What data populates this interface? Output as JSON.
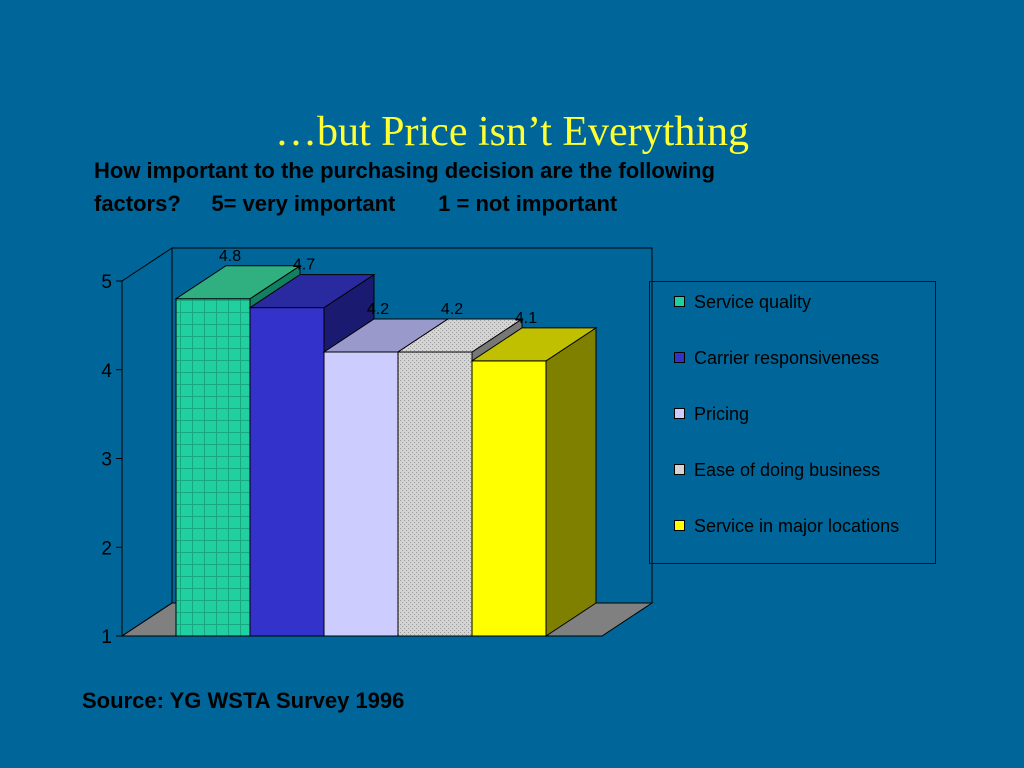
{
  "slide": {
    "title": "…but Price isn’t Everything",
    "question_line1": "How important to the purchasing decision are the following",
    "question_line2": "factors?     5= very important       1 = not important",
    "source": "Source: YG WSTA Survey 1996"
  },
  "colors": {
    "background": "#006699",
    "title": "#ffff33",
    "floor": "#808080"
  },
  "chart_data": {
    "type": "bar",
    "title": "",
    "xlabel": "",
    "ylabel": "",
    "ylim": [
      1,
      5
    ],
    "yticks": [
      "1",
      "2",
      "3",
      "4",
      "5"
    ],
    "grid": false,
    "three_d": true,
    "legend_position": "right",
    "series": [
      {
        "name": "Service quality",
        "value": 4.8,
        "label": "4.8",
        "color": "#20d0a0",
        "side_color": "#108060",
        "top_color": "#30b080",
        "pattern": "grid"
      },
      {
        "name": "Carrier responsiveness",
        "value": 4.7,
        "label": "4.7",
        "color": "#3333cc",
        "side_color": "#1a1a70",
        "top_color": "#2a2aa0",
        "pattern": "none"
      },
      {
        "name": "Pricing",
        "value": 4.2,
        "label": "4.2",
        "color": "#ccccff",
        "side_color": "#7777aa",
        "top_color": "#9999cc",
        "pattern": "none"
      },
      {
        "name": "Ease of doing business",
        "value": 4.2,
        "label": "4.2",
        "color": "#d4d4d4",
        "side_color": "#777777",
        "top_color": "#999999",
        "pattern": "dots"
      },
      {
        "name": "Service in major locations",
        "value": 4.1,
        "label": "4.1",
        "color": "#ffff00",
        "side_color": "#808000",
        "top_color": "#c0c000",
        "pattern": "none"
      }
    ]
  }
}
